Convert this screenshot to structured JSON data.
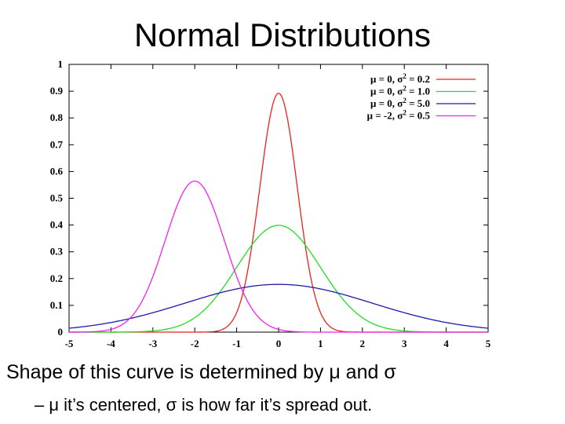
{
  "slide": {
    "title": "Normal Distributions",
    "bullet_main": "Shape of this curve is determined by μ and σ",
    "bullet_sub": "– μ it’s centered, σ is how far it’s spread out."
  },
  "chart_data": {
    "type": "line",
    "title": "",
    "xlabel": "",
    "ylabel": "",
    "xlim": [
      -5,
      5
    ],
    "ylim": [
      0,
      1
    ],
    "x_ticks": [
      "-5",
      "-4",
      "-3",
      "-2",
      "-1",
      "0",
      "1",
      "2",
      "3",
      "4",
      "5"
    ],
    "y_ticks": [
      "0",
      "0.1",
      "0.2",
      "0.3",
      "0.4",
      "0.5",
      "0.6",
      "0.7",
      "0.8",
      "0.9",
      "1"
    ],
    "grid": false,
    "legend_position": "top-right",
    "series": [
      {
        "name": "μ = 0, σ² = 0.2",
        "label_parts": [
          "μ =  0, σ",
          "2",
          " = 0.2"
        ],
        "mu": 0,
        "variance": 0.2,
        "color": "#e8221b",
        "peak": [
          0,
          0.892
        ]
      },
      {
        "name": "μ = 0, σ² = 1.0",
        "label_parts": [
          "μ =  0, σ",
          "2",
          " = 1.0"
        ],
        "mu": 0,
        "variance": 1.0,
        "color": "#22dd22",
        "peak": [
          0,
          0.399
        ]
      },
      {
        "name": "μ = 0, σ² = 5.0",
        "label_parts": [
          "μ =  0, σ",
          "2",
          " = 5.0"
        ],
        "mu": 0,
        "variance": 5.0,
        "color": "#1c1ca8",
        "peak": [
          0,
          0.178
        ]
      },
      {
        "name": "μ = -2, σ² = 0.5",
        "label_parts": [
          "μ = -2, σ",
          "2",
          " = 0.5"
        ],
        "mu": -2,
        "variance": 0.5,
        "color": "#ee22ee",
        "peak": [
          -2,
          0.564
        ]
      }
    ]
  }
}
